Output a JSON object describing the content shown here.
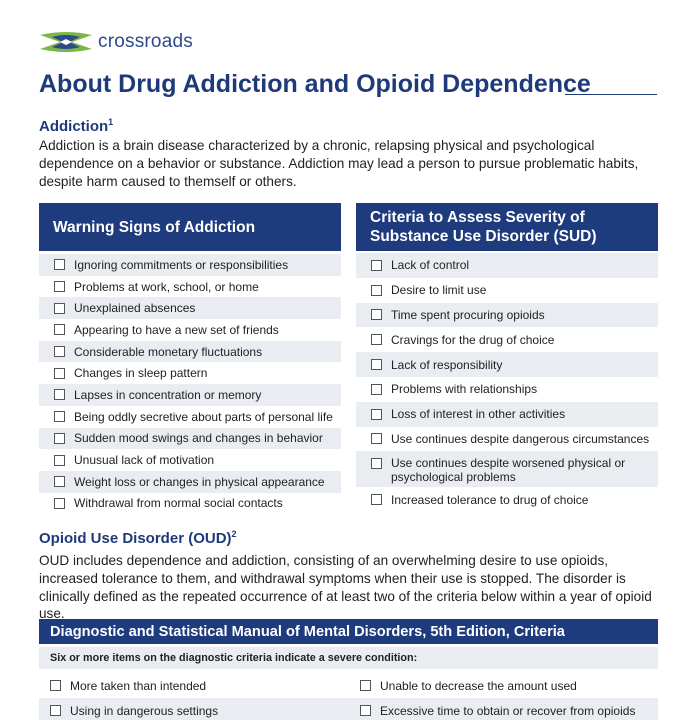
{
  "brand": {
    "name": "crossroads",
    "logo_colors": {
      "blue": "#2f4a8a",
      "green": "#7ab648"
    }
  },
  "title": "About Drug Addiction and Opioid Dependence",
  "addiction": {
    "heading": "Addiction",
    "footnote": "1",
    "text": "Addiction is a brain disease characterized by a chronic, relapsing physical and psychological dependence on a behavior or substance. Addiction may lead a person to pursue problematic habits, despite harm caused to themself or others."
  },
  "warning_signs": {
    "heading": "Warning Signs of Addiction",
    "items": [
      "Ignoring commitments or responsibilities",
      "Problems at work, school, or home",
      "Unexplained absences",
      "Appearing to have a new set of friends",
      "Considerable monetary fluctuations",
      "Changes in sleep pattern",
      "Lapses in concentration or memory",
      "Being oddly secretive about parts of personal life",
      "Sudden mood swings and changes in behavior",
      "Unusual lack of motivation",
      "Weight loss or changes in physical appearance",
      "Withdrawal from normal social contacts"
    ]
  },
  "criteria_severity": {
    "heading_line1": "Criteria to Assess Severity of",
    "heading_line2": "Substance Use Disorder (SUD)",
    "items": [
      {
        "line1": "Lack of control"
      },
      {
        "line1": "Desire to limit use"
      },
      {
        "line1": "Time spent procuring opioids"
      },
      {
        "line1": "Cravings for the drug of choice"
      },
      {
        "line1": "Lack of responsibility"
      },
      {
        "line1": "Problems with relationships"
      },
      {
        "line1": "Loss of interest in other activities"
      },
      {
        "line1": "Use continues despite dangerous circumstances"
      },
      {
        "line1": "Use continues despite worsened physical or",
        "line2": "psychological problems"
      },
      {
        "line1": "Increased tolerance to drug of choice"
      }
    ]
  },
  "oud": {
    "heading": "Opioid Use Disorder (OUD)",
    "footnote": "2",
    "text": "OUD includes dependence and addiction, consisting of an overwhelming desire to use opioids, increased tolerance to them, and withdrawal symptoms when their use is stopped. The disorder is clinically defined as the repeated occurrence of at least two of the criteria below within a year of opioid use."
  },
  "dsm": {
    "heading": "Diagnostic and Statistical Manual of Mental Disorders, 5th Edition, Criteria",
    "note": "Six or more items on the diagnostic criteria indicate a severe condition:",
    "rows": [
      {
        "left": "More taken than intended",
        "right": "Unable to decrease the amount used"
      },
      {
        "left": "Using in dangerous settings",
        "right": "Excessive time to obtain or recover from opioids"
      }
    ]
  }
}
